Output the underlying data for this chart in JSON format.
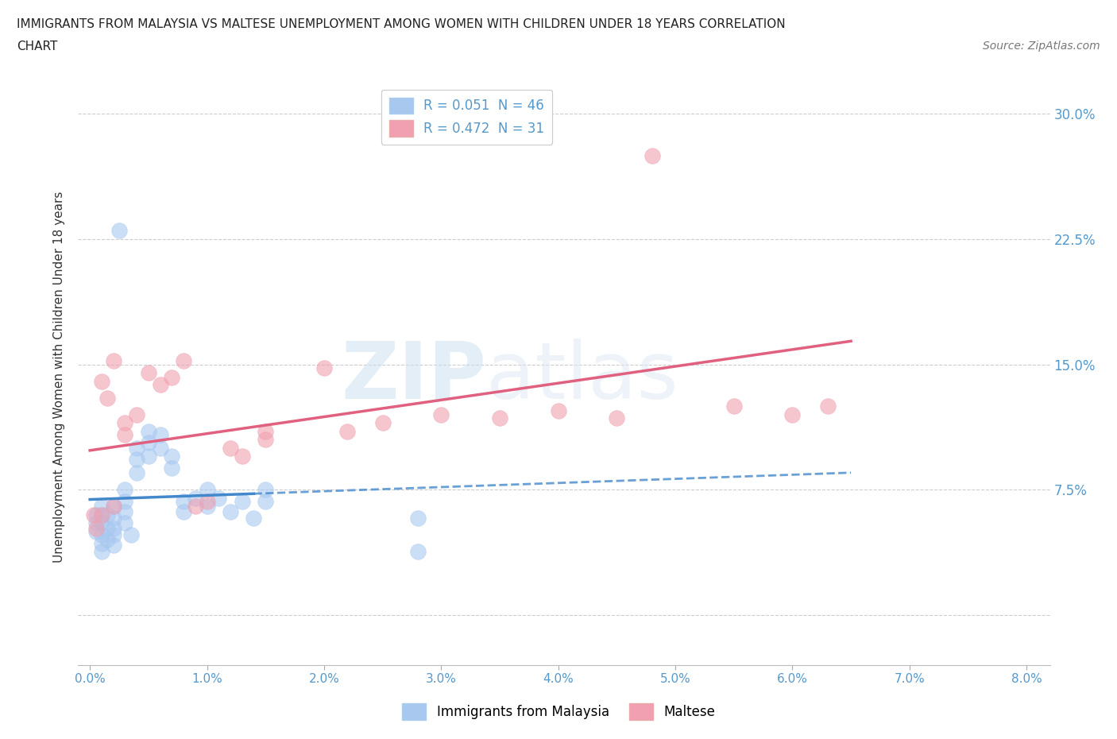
{
  "title_line1": "IMMIGRANTS FROM MALAYSIA VS MALTESE UNEMPLOYMENT AMONG WOMEN WITH CHILDREN UNDER 18 YEARS CORRELATION",
  "title_line2": "CHART",
  "source_text": "Source: ZipAtlas.com",
  "ylabel": "Unemployment Among Women with Children Under 18 years",
  "legend_entries": [
    {
      "label": "R = 0.051  N = 46",
      "color": "#a8c8f0"
    },
    {
      "label": "R = 0.472  N = 31",
      "color": "#f0a0b0"
    }
  ],
  "legend_labels": [
    "Immigrants from Malaysia",
    "Maltese"
  ],
  "x_ticks": [
    0.0,
    0.01,
    0.02,
    0.03,
    0.04,
    0.05,
    0.06,
    0.07,
    0.08
  ],
  "x_tick_labels": [
    "0.0%",
    "1.0%",
    "2.0%",
    "3.0%",
    "4.0%",
    "5.0%",
    "6.0%",
    "7.0%",
    "8.0%"
  ],
  "y_ticks": [
    0.0,
    0.075,
    0.15,
    0.225,
    0.3
  ],
  "y_tick_labels": [
    "",
    "7.5%",
    "15.0%",
    "22.5%",
    "30.0%"
  ],
  "xlim": [
    -0.001,
    0.082
  ],
  "ylim": [
    -0.03,
    0.315
  ],
  "background_color": "#ffffff",
  "grid_color": "#cccccc",
  "blue_color": "#a8c8f0",
  "pink_color": "#f0a0b0",
  "blue_line_color": "#4488cc",
  "pink_line_color": "#e06080",
  "axis_label_color": "#5599cc",
  "blue_points_x": [
    0.0005,
    0.0005,
    0.0005,
    0.001,
    0.001,
    0.001,
    0.001,
    0.001,
    0.001,
    0.0015,
    0.0015,
    0.0015,
    0.002,
    0.002,
    0.002,
    0.002,
    0.002,
    0.0025,
    0.003,
    0.003,
    0.003,
    0.003,
    0.0035,
    0.004,
    0.004,
    0.004,
    0.005,
    0.005,
    0.005,
    0.006,
    0.006,
    0.007,
    0.007,
    0.008,
    0.008,
    0.009,
    0.01,
    0.01,
    0.011,
    0.012,
    0.013,
    0.014,
    0.015,
    0.015,
    0.028,
    0.028
  ],
  "blue_points_y": [
    0.06,
    0.055,
    0.05,
    0.065,
    0.06,
    0.055,
    0.048,
    0.043,
    0.038,
    0.06,
    0.052,
    0.045,
    0.065,
    0.058,
    0.052,
    0.048,
    0.042,
    0.23,
    0.075,
    0.068,
    0.062,
    0.055,
    0.048,
    0.1,
    0.093,
    0.085,
    0.11,
    0.103,
    0.095,
    0.108,
    0.1,
    0.095,
    0.088,
    0.068,
    0.062,
    0.07,
    0.075,
    0.065,
    0.07,
    0.062,
    0.068,
    0.058,
    0.075,
    0.068,
    0.058,
    0.038
  ],
  "pink_points_x": [
    0.0003,
    0.0005,
    0.001,
    0.001,
    0.0015,
    0.002,
    0.002,
    0.003,
    0.003,
    0.004,
    0.005,
    0.006,
    0.007,
    0.008,
    0.009,
    0.01,
    0.012,
    0.013,
    0.015,
    0.015,
    0.02,
    0.022,
    0.025,
    0.03,
    0.035,
    0.04,
    0.045,
    0.048,
    0.055,
    0.06,
    0.063
  ],
  "pink_points_y": [
    0.06,
    0.052,
    0.14,
    0.06,
    0.13,
    0.152,
    0.065,
    0.115,
    0.108,
    0.12,
    0.145,
    0.138,
    0.142,
    0.152,
    0.065,
    0.068,
    0.1,
    0.095,
    0.11,
    0.105,
    0.148,
    0.11,
    0.115,
    0.12,
    0.118,
    0.122,
    0.118,
    0.275,
    0.125,
    0.12,
    0.125
  ],
  "blue_line_x1": 0.0,
  "blue_line_x2": 0.014,
  "blue_line_x2_dash": 0.065,
  "pink_line_x1": 0.0,
  "pink_line_x2": 0.065
}
